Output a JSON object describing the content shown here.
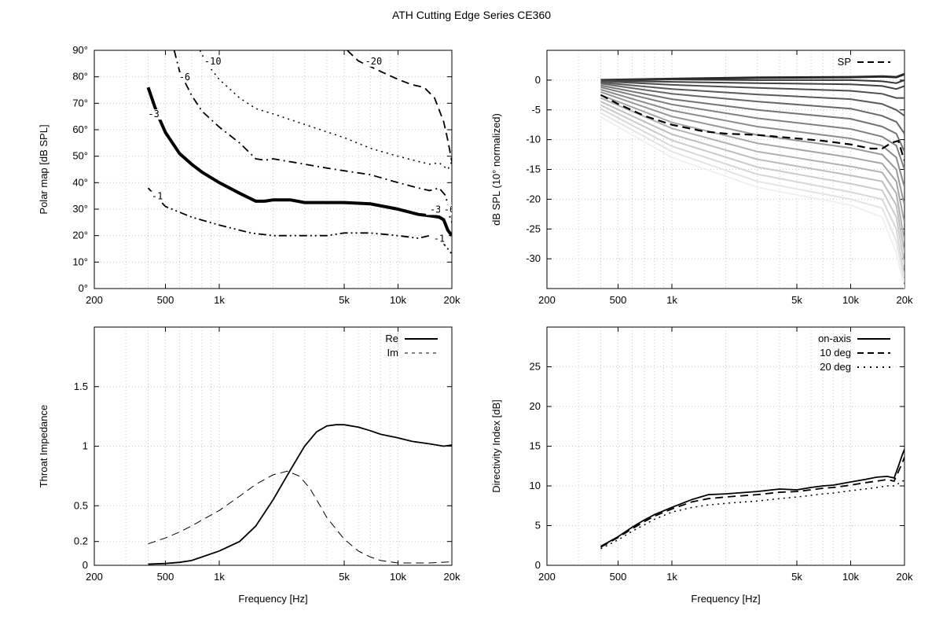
{
  "title": "ATH Cutting Edge Series CE360",
  "chart_data": [
    {
      "id": "polar",
      "type": "line",
      "subtype": "contour",
      "xscale": "log",
      "xlim": [
        200,
        20000
      ],
      "ylim": [
        0,
        90
      ],
      "xticks": [
        200,
        500,
        1000,
        5000,
        10000,
        20000
      ],
      "xtick_labels": [
        "200",
        "500",
        "1k",
        "5k",
        "10k",
        "20k"
      ],
      "yticks": [
        0,
        10,
        20,
        30,
        40,
        50,
        60,
        70,
        80,
        90
      ],
      "ytick_labels": [
        "0°",
        "10°",
        "20°",
        "30°",
        "40°",
        "50°",
        "60°",
        "70°",
        "80°",
        "90°"
      ],
      "xlabel": "",
      "ylabel": "Polar map [dB SPL]",
      "grid": true,
      "series": [
        {
          "name": "-1",
          "style": "dashdotdot",
          "x": [
            400,
            500,
            700,
            1000,
            1500,
            2000,
            3000,
            4000,
            5000,
            7000,
            10000,
            13000,
            15000,
            17000,
            19000,
            20000
          ],
          "y": [
            38,
            31,
            27,
            24,
            21,
            20,
            20,
            20,
            21,
            21,
            20,
            19,
            20,
            19,
            15,
            13
          ]
        },
        {
          "name": "-3",
          "style": "thick",
          "x": [
            400,
            450,
            500,
            600,
            700,
            800,
            1000,
            1300,
            1600,
            1800,
            2000,
            2500,
            3000,
            4000,
            5000,
            7000,
            10000,
            13000,
            15000,
            17000,
            18000,
            19000,
            20000
          ],
          "y": [
            76,
            66,
            59,
            51,
            47,
            44,
            40,
            36,
            33,
            33,
            33.5,
            33.5,
            32.5,
            32.5,
            32.5,
            32,
            30,
            28,
            27.5,
            27,
            26,
            22,
            20
          ]
        },
        {
          "name": "-6",
          "style": "dashdot",
          "x": [
            560,
            600,
            700,
            800,
            1000,
            1300,
            1600,
            1800,
            2000,
            3000,
            4000,
            5000,
            7000,
            10000,
            13000,
            15000,
            17000,
            18500,
            19500,
            20000
          ],
          "y": [
            90,
            82,
            73,
            67,
            61,
            55,
            49,
            48.5,
            49,
            47,
            45.5,
            44.5,
            43,
            40,
            38,
            37,
            38,
            35,
            27,
            25
          ]
        },
        {
          "name": "-10",
          "style": "dotted",
          "x": [
            780,
            850,
            1000,
            1300,
            1600,
            2000,
            3000,
            5000,
            7000,
            10000,
            13000,
            15000,
            17000,
            19000,
            20000
          ],
          "y": [
            90,
            85,
            79,
            72,
            68,
            66,
            62,
            57,
            53,
            50,
            48,
            47,
            47.5,
            45,
            48
          ]
        },
        {
          "name": "-20",
          "style": "dashed",
          "x": [
            5200,
            6000,
            8000,
            10000,
            12000,
            14000,
            16000,
            18000,
            19000,
            20000
          ],
          "y": [
            90,
            86,
            82,
            79,
            77,
            76,
            72,
            63,
            56,
            48
          ]
        }
      ],
      "contour_labels": [
        {
          "text": "-1",
          "x": 450,
          "y": 34
        },
        {
          "text": "-3",
          "x": 430,
          "y": 65
        },
        {
          "text": "-6",
          "x": 640,
          "y": 79
        },
        {
          "text": "-10",
          "x": 920,
          "y": 85
        },
        {
          "text": "-20",
          "x": 7300,
          "y": 85
        },
        {
          "text": "-3",
          "x": 16200,
          "y": 29
        },
        {
          "text": "-6",
          "x": 19400,
          "y": 29
        },
        {
          "text": "-1",
          "x": 17000,
          "y": 18
        }
      ]
    },
    {
      "id": "normalized",
      "type": "line",
      "xscale": "log",
      "xlim": [
        200,
        20000
      ],
      "ylim": [
        -35,
        5
      ],
      "xticks": [
        200,
        500,
        1000,
        5000,
        10000,
        20000
      ],
      "xtick_labels": [
        "200",
        "500",
        "1k",
        "5k",
        "10k",
        "20k"
      ],
      "yticks": [
        0,
        -5,
        -10,
        -15,
        -20,
        -25,
        -30
      ],
      "ytick_labels": [
        "0",
        "-5",
        "-10",
        "-15",
        "-20",
        "-25",
        "-30"
      ],
      "xlabel": "",
      "ylabel": "dB SPL (10° normalized)",
      "grid": true,
      "legend": {
        "position": "top-right",
        "entries": [
          "SP"
        ]
      },
      "sp_series": {
        "name": "SP",
        "style": "dashed",
        "x": [
          400,
          500,
          700,
          1000,
          1500,
          2000,
          3000,
          5000,
          7000,
          10000,
          13000,
          15000,
          17000,
          18500,
          19500,
          20000
        ],
        "y": [
          -2.5,
          -4,
          -6,
          -7.5,
          -8.6,
          -9,
          -9.2,
          -9.8,
          -10.2,
          -10.8,
          -11.5,
          -11.5,
          -10.5,
          -10.2,
          -12.5,
          -13.5
        ]
      },
      "family": {
        "count": 17,
        "angles_note": "0° to 90° step ~5°",
        "curves": [
          {
            "x": [
              400,
              1000,
              3000,
              10000,
              15000,
              18000,
              20000
            ],
            "y": [
              0,
              0.2,
              0.4,
              0.5,
              0.6,
              0.5,
              1
            ]
          },
          {
            "x": [
              400,
              1000,
              3000,
              10000,
              15000,
              18000,
              20000
            ],
            "y": [
              0,
              0.1,
              0,
              0,
              -0.2,
              -0.5,
              0
            ]
          },
          {
            "x": [
              400,
              1000,
              3000,
              10000,
              15000,
              18000,
              20000
            ],
            "y": [
              -0.1,
              -0.3,
              -0.5,
              -0.7,
              -1,
              -1.5,
              -1
            ]
          },
          {
            "x": [
              400,
              1000,
              3000,
              10000,
              15000,
              18000,
              20000
            ],
            "y": [
              -0.2,
              -0.8,
              -1.3,
              -1.8,
              -2.3,
              -3,
              -3
            ]
          },
          {
            "x": [
              400,
              1000,
              3000,
              10000,
              15000,
              18000,
              20000
            ],
            "y": [
              -0.4,
              -1.5,
              -2.4,
              -3.2,
              -4,
              -5,
              -6
            ]
          },
          {
            "x": [
              400,
              1000,
              3000,
              10000,
              15000,
              18000,
              20000
            ],
            "y": [
              -0.6,
              -2.3,
              -3.6,
              -4.8,
              -6,
              -7,
              -9
            ]
          },
          {
            "x": [
              400,
              1000,
              3000,
              10000,
              15000,
              18000,
              20000
            ],
            "y": [
              -0.9,
              -3.2,
              -5,
              -6.5,
              -7.8,
              -9,
              -12
            ]
          },
          {
            "x": [
              400,
              1000,
              3000,
              10000,
              15000,
              18000,
              20000
            ],
            "y": [
              -1.2,
              -4.1,
              -6.4,
              -8.2,
              -9.5,
              -11,
              -15
            ]
          },
          {
            "x": [
              400,
              1000,
              3000,
              10000,
              15000,
              18000,
              20000
            ],
            "y": [
              -1.6,
              -5.1,
              -7.8,
              -9.8,
              -11,
              -13,
              -18
            ]
          },
          {
            "x": [
              400,
              1000,
              3000,
              10000,
              15000,
              18000,
              20000
            ],
            "y": [
              -2,
              -6.1,
              -9.2,
              -11.4,
              -12.5,
              -15,
              -21
            ]
          },
          {
            "x": [
              400,
              1000,
              3000,
              10000,
              15000,
              18000,
              20000
            ],
            "y": [
              -2.5,
              -7.1,
              -10.6,
              -13,
              -14,
              -17,
              -24
            ]
          },
          {
            "x": [
              400,
              1000,
              3000,
              10000,
              15000,
              18000,
              20000
            ],
            "y": [
              -3,
              -8.1,
              -12,
              -14.5,
              -15.5,
              -19,
              -27
            ]
          },
          {
            "x": [
              400,
              1000,
              3000,
              10000,
              15000,
              18000,
              20000
            ],
            "y": [
              -3.6,
              -9.1,
              -13.3,
              -16,
              -17,
              -21,
              -29
            ]
          },
          {
            "x": [
              400,
              1000,
              3000,
              10000,
              15000,
              18000,
              20000
            ],
            "y": [
              -4.2,
              -10.1,
              -14.6,
              -17.4,
              -18.5,
              -23,
              -31
            ]
          },
          {
            "x": [
              400,
              1000,
              3000,
              10000,
              15000,
              18000,
              20000
            ],
            "y": [
              -4.8,
              -11.1,
              -15.8,
              -18.8,
              -20,
              -25,
              -33
            ]
          },
          {
            "x": [
              400,
              1000,
              3000,
              10000,
              15000,
              18000,
              20000
            ],
            "y": [
              -5.5,
              -12,
              -17,
              -20,
              -21.5,
              -27,
              -34
            ]
          },
          {
            "x": [
              400,
              1000,
              3000,
              10000,
              15000,
              18000,
              20000
            ],
            "y": [
              -6.2,
              -13,
              -18,
              -21,
              -23,
              -29,
              -35
            ]
          }
        ]
      }
    },
    {
      "id": "impedance",
      "type": "line",
      "xscale": "log",
      "xlim": [
        200,
        20000
      ],
      "ylim": [
        0,
        2
      ],
      "xticks": [
        200,
        500,
        1000,
        5000,
        10000,
        20000
      ],
      "xtick_labels": [
        "200",
        "500",
        "1k",
        "5k",
        "10k",
        "20k"
      ],
      "yticks": [
        0,
        0.2,
        0.5,
        1,
        1.5
      ],
      "ytick_labels": [
        "0",
        "0.2",
        "0.5",
        "1",
        "1.5"
      ],
      "xlabel": "Frequency [Hz]",
      "ylabel": "Throat Impedance",
      "grid": true,
      "legend": {
        "position": "top-right",
        "entries": [
          "Re",
          "Im"
        ]
      },
      "series": [
        {
          "name": "Re",
          "style": "solid",
          "x": [
            400,
            500,
            600,
            700,
            800,
            1000,
            1300,
            1600,
            2000,
            2500,
            3000,
            3500,
            4000,
            4500,
            5000,
            6000,
            7000,
            8000,
            10000,
            12000,
            15000,
            18000,
            20000
          ],
          "y": [
            0.01,
            0.015,
            0.025,
            0.04,
            0.07,
            0.12,
            0.2,
            0.33,
            0.55,
            0.8,
            1.0,
            1.12,
            1.17,
            1.18,
            1.18,
            1.16,
            1.13,
            1.1,
            1.07,
            1.04,
            1.02,
            1.0,
            1.01
          ]
        },
        {
          "name": "Im",
          "style": "dashed",
          "x": [
            400,
            500,
            600,
            700,
            800,
            1000,
            1300,
            1600,
            2000,
            2400,
            2800,
            3200,
            3600,
            4000,
            5000,
            6000,
            7000,
            8000,
            10000,
            12000,
            15000,
            20000
          ],
          "y": [
            0.18,
            0.23,
            0.28,
            0.33,
            0.38,
            0.46,
            0.58,
            0.68,
            0.76,
            0.79,
            0.75,
            0.65,
            0.52,
            0.4,
            0.22,
            0.12,
            0.07,
            0.04,
            0.02,
            0.02,
            0.02,
            0.03
          ]
        }
      ]
    },
    {
      "id": "directivity",
      "type": "line",
      "xscale": "log",
      "xlim": [
        200,
        20000
      ],
      "ylim": [
        0,
        30
      ],
      "xticks": [
        200,
        500,
        1000,
        5000,
        10000,
        20000
      ],
      "xtick_labels": [
        "200",
        "500",
        "1k",
        "5k",
        "10k",
        "20k"
      ],
      "yticks": [
        0,
        5,
        10,
        15,
        20,
        25
      ],
      "ytick_labels": [
        "0",
        "5",
        "10",
        "15",
        "20",
        "25"
      ],
      "xlabel": "Frequency [Hz]",
      "ylabel": "Directivity Index [dB]",
      "grid": true,
      "legend": {
        "position": "top-right",
        "entries": [
          "on-axis",
          "10 deg",
          "20 deg"
        ]
      },
      "series": [
        {
          "name": "on-axis",
          "style": "solid",
          "x": [
            400,
            500,
            600,
            700,
            800,
            1000,
            1300,
            1600,
            2000,
            3000,
            4000,
            5000,
            6000,
            7000,
            8000,
            10000,
            12000,
            14000,
            16000,
            17500,
            18500,
            19500,
            20000
          ],
          "y": [
            2.4,
            3.6,
            4.8,
            5.7,
            6.4,
            7.3,
            8.3,
            8.9,
            9.0,
            9.3,
            9.6,
            9.5,
            9.8,
            10.0,
            10.1,
            10.5,
            10.8,
            11.1,
            11.2,
            11.0,
            12.5,
            14.0,
            14.6
          ]
        },
        {
          "name": "10 deg",
          "style": "dashed",
          "x": [
            400,
            500,
            600,
            700,
            800,
            1000,
            1300,
            1600,
            2000,
            3000,
            4000,
            5000,
            6000,
            7000,
            8000,
            10000,
            12000,
            14000,
            16000,
            17500,
            18500,
            19500,
            20000
          ],
          "y": [
            2.3,
            3.5,
            4.6,
            5.5,
            6.2,
            7.1,
            8.0,
            8.4,
            8.6,
            8.9,
            9.2,
            9.3,
            9.5,
            9.7,
            9.8,
            10.1,
            10.4,
            10.6,
            10.8,
            10.6,
            11.8,
            13.0,
            13.6
          ]
        },
        {
          "name": "20 deg",
          "style": "dotted",
          "x": [
            400,
            500,
            600,
            700,
            800,
            1000,
            1300,
            1600,
            2000,
            3000,
            4000,
            5000,
            6000,
            7000,
            8000,
            10000,
            12000,
            14000,
            16000,
            17500,
            18500,
            19500,
            20000
          ],
          "y": [
            2.1,
            3.2,
            4.3,
            5.1,
            5.8,
            6.7,
            7.3,
            7.6,
            7.8,
            8.1,
            8.4,
            8.6,
            8.8,
            9.0,
            9.1,
            9.4,
            9.6,
            9.8,
            10.0,
            10.0,
            10.3,
            10.6,
            10.7
          ]
        }
      ]
    }
  ]
}
